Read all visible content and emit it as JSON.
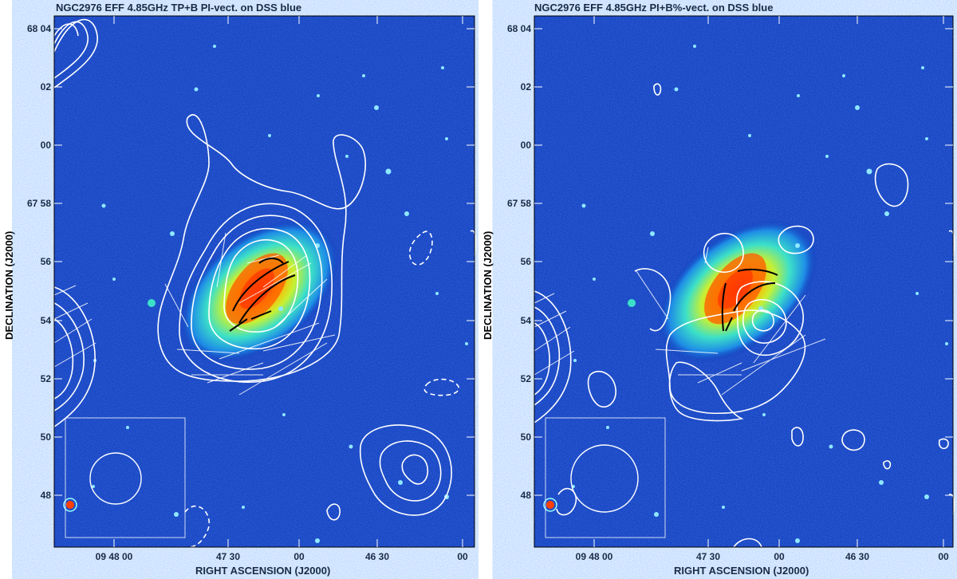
{
  "panels": [
    {
      "title": "NGC2976 EFF 4.85GHz TP+B PI-vect. on DSS blue",
      "x_axis_label": "RIGHT ASCENSION (J2000)",
      "y_axis_label": "DECLINATION (J2000)",
      "y_ticks": [
        "68 04",
        "02",
        "00",
        "67 58",
        "56",
        "54",
        "52",
        "50",
        "48"
      ],
      "x_ticks": [
        "09 48 00",
        "47 30",
        "00",
        "46 30",
        "00"
      ]
    },
    {
      "title": "NGC2976 EFF 4.85GHz PI+B%-vect. on DSS blue",
      "x_axis_label": "RIGHT ASCENSION (J2000)",
      "y_axis_label": "DECLINATION (J2000)",
      "y_ticks": [
        "68 04",
        "02",
        "00",
        "67 58",
        "56",
        "54",
        "52",
        "50",
        "48"
      ],
      "x_ticks": [
        "09 48 00",
        "47 30",
        "00",
        "46 30",
        "00"
      ]
    }
  ],
  "colors": {
    "sky_background": "#0a2fb4",
    "contour": "#ffffff",
    "vector_dark": "#000000",
    "galaxy_core": "#ff3300"
  }
}
